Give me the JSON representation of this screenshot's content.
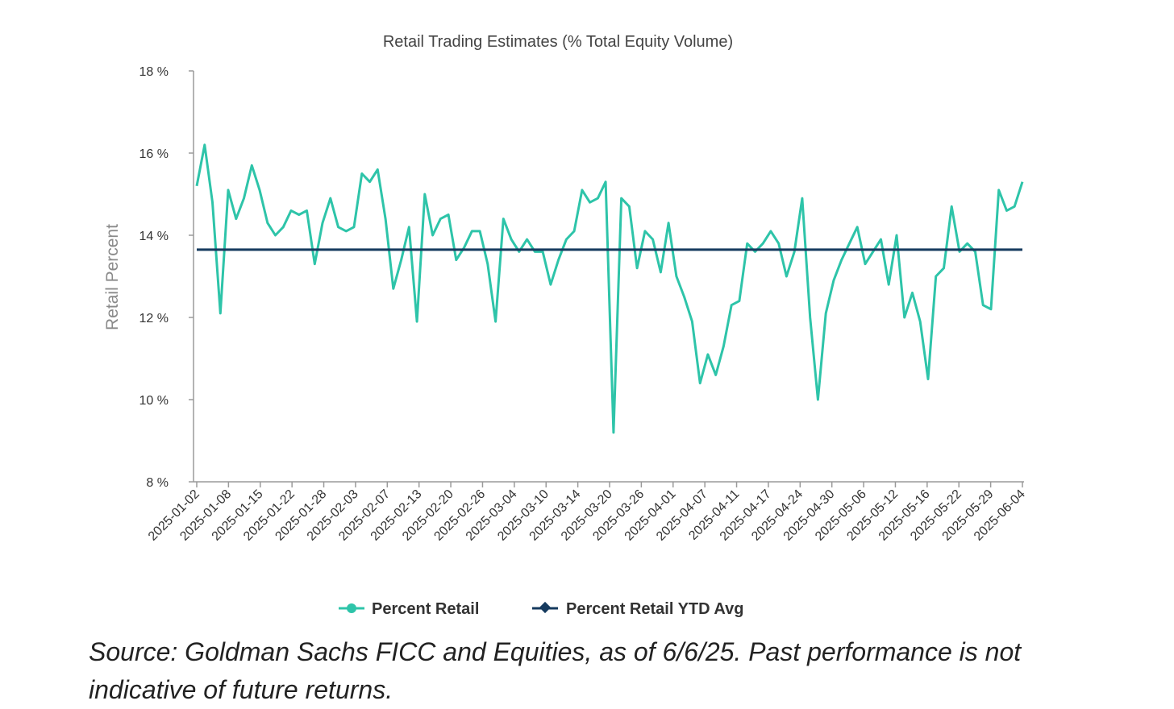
{
  "chart_data": {
    "type": "line",
    "title": "Retail Trading Estimates (% Total Equity Volume)",
    "ylabel": "Retail Percent",
    "xlabel": "",
    "ylim": [
      8,
      18
    ],
    "yticks": [
      "8 %",
      "10 %",
      "12 %",
      "14 %",
      "16 %",
      "18 %"
    ],
    "ytick_values": [
      8,
      10,
      12,
      14,
      16,
      18
    ],
    "x_tick_labels": [
      "2025-01-02",
      "2025-01-08",
      "2025-01-15",
      "2025-01-22",
      "2025-01-28",
      "2025-02-03",
      "2025-02-07",
      "2025-02-13",
      "2025-02-20",
      "2025-02-26",
      "2025-03-04",
      "2025-03-10",
      "2025-03-14",
      "2025-03-20",
      "2025-03-26",
      "2025-04-01",
      "2025-04-07",
      "2025-04-11",
      "2025-04-17",
      "2025-04-24",
      "2025-04-30",
      "2025-05-06",
      "2025-05-12",
      "2025-05-16",
      "2025-05-22",
      "2025-05-29",
      "2025-06-04"
    ],
    "grid": false,
    "legend_position": "bottom",
    "series": [
      {
        "name": "Percent Retail",
        "color": "#2ec4a9",
        "type": "line",
        "values": [
          15.2,
          16.2,
          14.8,
          12.1,
          15.1,
          14.4,
          14.9,
          15.7,
          15.1,
          14.3,
          14.0,
          14.2,
          14.6,
          14.5,
          14.6,
          13.3,
          14.3,
          14.9,
          14.2,
          14.1,
          14.2,
          15.5,
          15.3,
          15.6,
          14.4,
          12.7,
          13.4,
          14.2,
          11.9,
          15.0,
          14.0,
          14.4,
          14.5,
          13.4,
          13.7,
          14.1,
          14.1,
          13.3,
          11.9,
          14.4,
          13.9,
          13.6,
          13.9,
          13.6,
          13.6,
          12.8,
          13.4,
          13.9,
          14.1,
          15.1,
          14.8,
          14.9,
          15.3,
          9.2,
          14.9,
          14.7,
          13.2,
          14.1,
          13.9,
          13.1,
          14.3,
          13.0,
          12.5,
          11.9,
          10.4,
          11.1,
          10.6,
          11.3,
          12.3,
          12.4,
          13.8,
          13.6,
          13.8,
          14.1,
          13.8,
          13.0,
          13.6,
          14.9,
          12.0,
          10.0,
          12.1,
          12.9,
          13.4,
          13.8,
          14.2,
          13.3,
          13.6,
          13.9,
          12.8,
          14.0,
          12.0,
          12.6,
          11.9,
          10.5,
          13.0,
          13.2,
          14.7,
          13.6,
          13.8,
          13.6,
          12.3,
          12.2,
          15.1,
          14.6,
          14.7,
          15.3
        ]
      },
      {
        "name": "Percent Retail YTD Avg",
        "color": "#153a5e",
        "type": "line",
        "constant": 13.65
      }
    ]
  },
  "legend": {
    "item1": "Percent Retail",
    "item2": "Percent Retail YTD Avg"
  },
  "footer": {
    "source_text": "Source: Goldman Sachs FICC and Equities, as of 6/6/25. Past performance is not indicative of future returns."
  }
}
